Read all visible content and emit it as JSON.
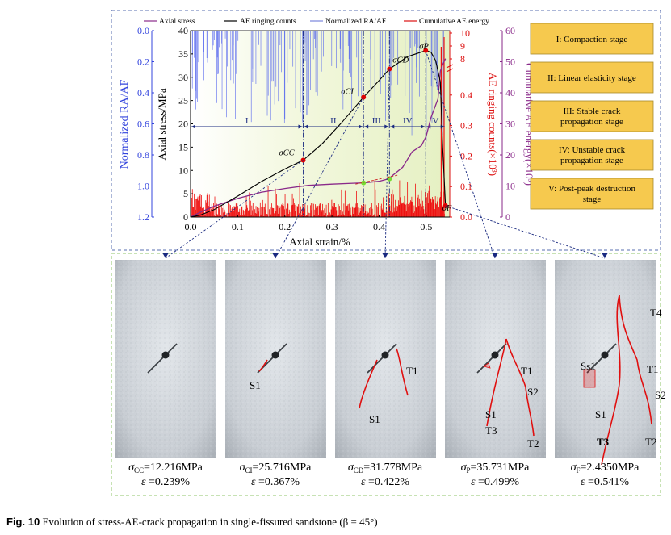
{
  "chart_data": {
    "type": "line",
    "legend": {
      "placement": "top",
      "entries": [
        "Axial stress",
        "AE ringing counts",
        "Normalized RA/AF",
        "Cumulative AE energy"
      ]
    },
    "xlabel": "Axial strain/%",
    "xlim": [
      0,
      0.55
    ],
    "xticks": [
      "0.0",
      "0.1",
      "0.2",
      "0.3",
      "0.4",
      "0.5"
    ],
    "axes": {
      "normalized_ra_af": {
        "label": "Normalized RA/AF",
        "ylim": [
          1.2,
          0.0
        ],
        "reversed": true,
        "ticks": [
          "0.0",
          "0.2",
          "0.4",
          "0.6",
          "0.8",
          "1.0",
          "1.2"
        ],
        "color": "#3344dd"
      },
      "axial_stress": {
        "label": "Axial stress/MPa",
        "ylim": [
          0,
          40
        ],
        "ticks": [
          "0",
          "5",
          "10",
          "15",
          "20",
          "25",
          "30",
          "35",
          "40"
        ],
        "color": "#000000"
      },
      "ae_ringing_counts": {
        "label": "AE ringing counts(×10³)",
        "ticks_low": [
          "0.0",
          "0.1",
          "0.2",
          "0.3",
          "0.4"
        ],
        "ticks_high": [
          "8",
          "9",
          "10"
        ],
        "axis_break": true,
        "color": "#dd1111"
      },
      "cumulative_ae_energy": {
        "label": "Cumulative AE energy(×10³)",
        "ylim": [
          0,
          60
        ],
        "ticks": [
          "0",
          "10",
          "20",
          "30",
          "40",
          "50",
          "60"
        ],
        "color": "#8a2a8a"
      }
    },
    "series": [
      {
        "name": "Axial stress",
        "color": "#000000",
        "x": [
          0,
          0.02,
          0.05,
          0.1,
          0.15,
          0.2,
          0.239,
          0.28,
          0.32,
          0.367,
          0.4,
          0.422,
          0.46,
          0.499,
          0.51,
          0.52,
          0.53,
          0.535,
          0.541
        ],
        "y": [
          0,
          0.4,
          1.6,
          4.5,
          7.6,
          10.3,
          12.216,
          15.8,
          20.2,
          25.716,
          29.3,
          31.778,
          34.4,
          35.731,
          35.4,
          33.6,
          29,
          15,
          2.435
        ]
      },
      {
        "name": "Cumulative AE energy",
        "color": "#8a2a8a",
        "x": [
          0,
          0.02,
          0.05,
          0.1,
          0.15,
          0.2,
          0.25,
          0.3,
          0.35,
          0.367,
          0.4,
          0.42,
          0.45,
          0.47,
          0.49,
          0.5,
          0.51,
          0.52,
          0.525,
          0.53,
          0.535,
          0.541
        ],
        "y": [
          0,
          1.5,
          3.5,
          6,
          8,
          9.2,
          10.2,
          10.6,
          10.9,
          11,
          11.5,
          12.3,
          16,
          21,
          23,
          26,
          32,
          36,
          38,
          47,
          49,
          51
        ]
      }
    ],
    "stages": [
      {
        "id": "I",
        "x0": 0,
        "x1": 0.239
      },
      {
        "id": "II",
        "x0": 0.239,
        "x1": 0.367
      },
      {
        "id": "III",
        "x0": 0.367,
        "x1": 0.422
      },
      {
        "id": "IV",
        "x0": 0.422,
        "x1": 0.499
      },
      {
        "id": "V",
        "x0": 0.499,
        "x1": 0.541
      }
    ],
    "key_points": [
      {
        "label": "σCC",
        "x": 0.239,
        "y": 12.216
      },
      {
        "label": "σCI",
        "x": 0.367,
        "y": 25.716
      },
      {
        "label": "σCD",
        "x": 0.422,
        "y": 31.778
      },
      {
        "label": "σP",
        "x": 0.499,
        "y": 35.731
      },
      {
        "label": "σF",
        "x": 0.541,
        "y": 2.435
      }
    ],
    "energy_markers": [
      {
        "x": 0.367,
        "y": 11
      },
      {
        "x": 0.422,
        "y": 12.3
      }
    ]
  },
  "stage_boxes": [
    "I: Compaction stage",
    "II: Linear elasticity stage",
    "III: Stable crack propagation stage",
    "IV: Unstable crack propagation stage",
    "V: Post-peak destruction stage"
  ],
  "photos": [
    {
      "sigma_symbol": "σ",
      "sigma_sub": "CC",
      "sigma_value": "=12.216MPa",
      "strain_symbol": "ε",
      "strain_value": " =0.239%",
      "labels": []
    },
    {
      "sigma_symbol": "σ",
      "sigma_sub": "CI",
      "sigma_value": "=25.716MPa",
      "strain_symbol": "ε",
      "strain_value": " =0.367%",
      "labels": [
        "S1"
      ]
    },
    {
      "sigma_symbol": "σ",
      "sigma_sub": "CD",
      "sigma_value": "=31.778MPa",
      "strain_symbol": "ε",
      "strain_value": " =0.422%",
      "labels": [
        "T1",
        "S1"
      ]
    },
    {
      "sigma_symbol": "σ",
      "sigma_sub": "P",
      "sigma_value": "=35.731MPa",
      "strain_symbol": "ε",
      "strain_value": " =0.499%",
      "labels": [
        "T1",
        "S2",
        "S1",
        "T3",
        "T2"
      ]
    },
    {
      "sigma_symbol": "σ",
      "sigma_sub": "F",
      "sigma_value": "=2.4350MPa",
      "strain_symbol": "ε",
      "strain_value": " =0.541%",
      "labels": [
        "T4",
        "Ss1",
        "T1",
        "S2",
        "S1",
        "T3",
        "T2"
      ]
    }
  ],
  "caption": {
    "fig": "Fig. 10",
    "text": "Evolution of stress-AE-crack propagation in single-fissured sandstone (β = 45°)"
  }
}
